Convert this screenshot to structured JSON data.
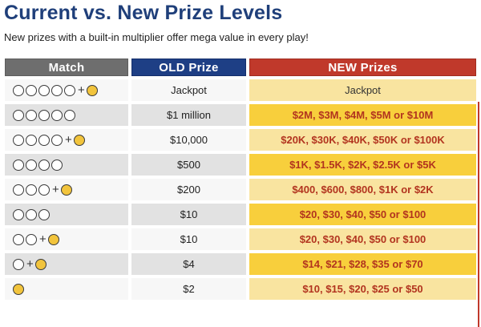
{
  "title": "Current vs. New Prize Levels",
  "subtitle": "New prizes with a built-in multiplier offer mega value in every play!",
  "headers": {
    "match": "Match",
    "old": "OLD Prize",
    "new": "NEW Prizes"
  },
  "rows": [
    {
      "white_balls": 5,
      "mega": true,
      "old": "Jackpot",
      "new": "Jackpot"
    },
    {
      "white_balls": 5,
      "mega": false,
      "old": "$1 million",
      "new": "$2M, $3M, $4M, $5M or $10M"
    },
    {
      "white_balls": 4,
      "mega": true,
      "old": "$10,000",
      "new": "$20K, $30K, $40K, $50K or $100K"
    },
    {
      "white_balls": 4,
      "mega": false,
      "old": "$500",
      "new": "$1K, $1.5K, $2K, $2.5K or $5K"
    },
    {
      "white_balls": 3,
      "mega": true,
      "old": "$200",
      "new": "$400, $600, $800, $1K or $2K"
    },
    {
      "white_balls": 3,
      "mega": false,
      "old": "$10",
      "new": "$20, $30, $40, $50 or $100"
    },
    {
      "white_balls": 2,
      "mega": true,
      "old": "$10",
      "new": "$20, $30, $40, $50 or $100"
    },
    {
      "white_balls": 1,
      "mega": true,
      "old": "$4",
      "new": "$14, $21, $28, $35 or $70"
    },
    {
      "white_balls": 0,
      "mega": true,
      "old": "$2",
      "new": "$10, $15, $20, $25 or $50"
    }
  ],
  "plus_symbol": "+",
  "colors": {
    "title": "#1f3f7a",
    "match_header": "#6e6e6e",
    "old_header": "#1e3f85",
    "new_header": "#c0392b",
    "new_light": "#f9e4a0",
    "new_dark": "#f8cf3c",
    "mega_ball": "#f2c43c"
  }
}
